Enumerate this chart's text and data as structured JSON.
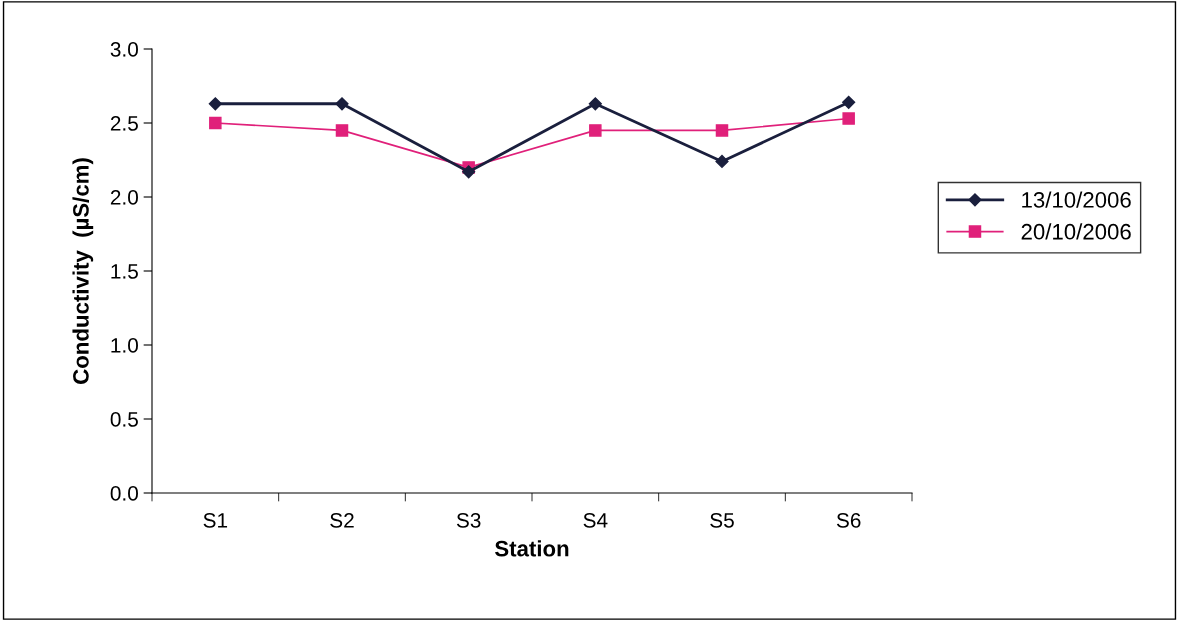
{
  "chart_data": {
    "type": "line",
    "xlabel": "Station",
    "ylabel": "Conductivity  (µS/cm)",
    "categories": [
      "S1",
      "S2",
      "S3",
      "S4",
      "S5",
      "S6"
    ],
    "series": [
      {
        "name": "13/10/2006",
        "color": "#1a1f3d",
        "marker": "diamond",
        "values": [
          2.63,
          2.63,
          2.17,
          2.63,
          2.24,
          2.64
        ]
      },
      {
        "name": "20/10/2006",
        "color": "#e0207a",
        "marker": "square",
        "values": [
          2.5,
          2.45,
          2.2,
          2.45,
          2.45,
          2.53
        ]
      }
    ],
    "ylim": [
      0,
      3
    ],
    "yticks": [
      {
        "value": 0,
        "label": "0.0"
      },
      {
        "value": 0.5,
        "label": "0.5"
      },
      {
        "value": 1,
        "label": "1.0"
      },
      {
        "value": 1.5,
        "label": "1.5"
      },
      {
        "value": 2,
        "label": "2.0"
      },
      {
        "value": 2.5,
        "label": "2.5"
      },
      {
        "value": 3,
        "label": "3.0"
      }
    ],
    "grid": false,
    "legend": "right",
    "line_style": "solid"
  }
}
